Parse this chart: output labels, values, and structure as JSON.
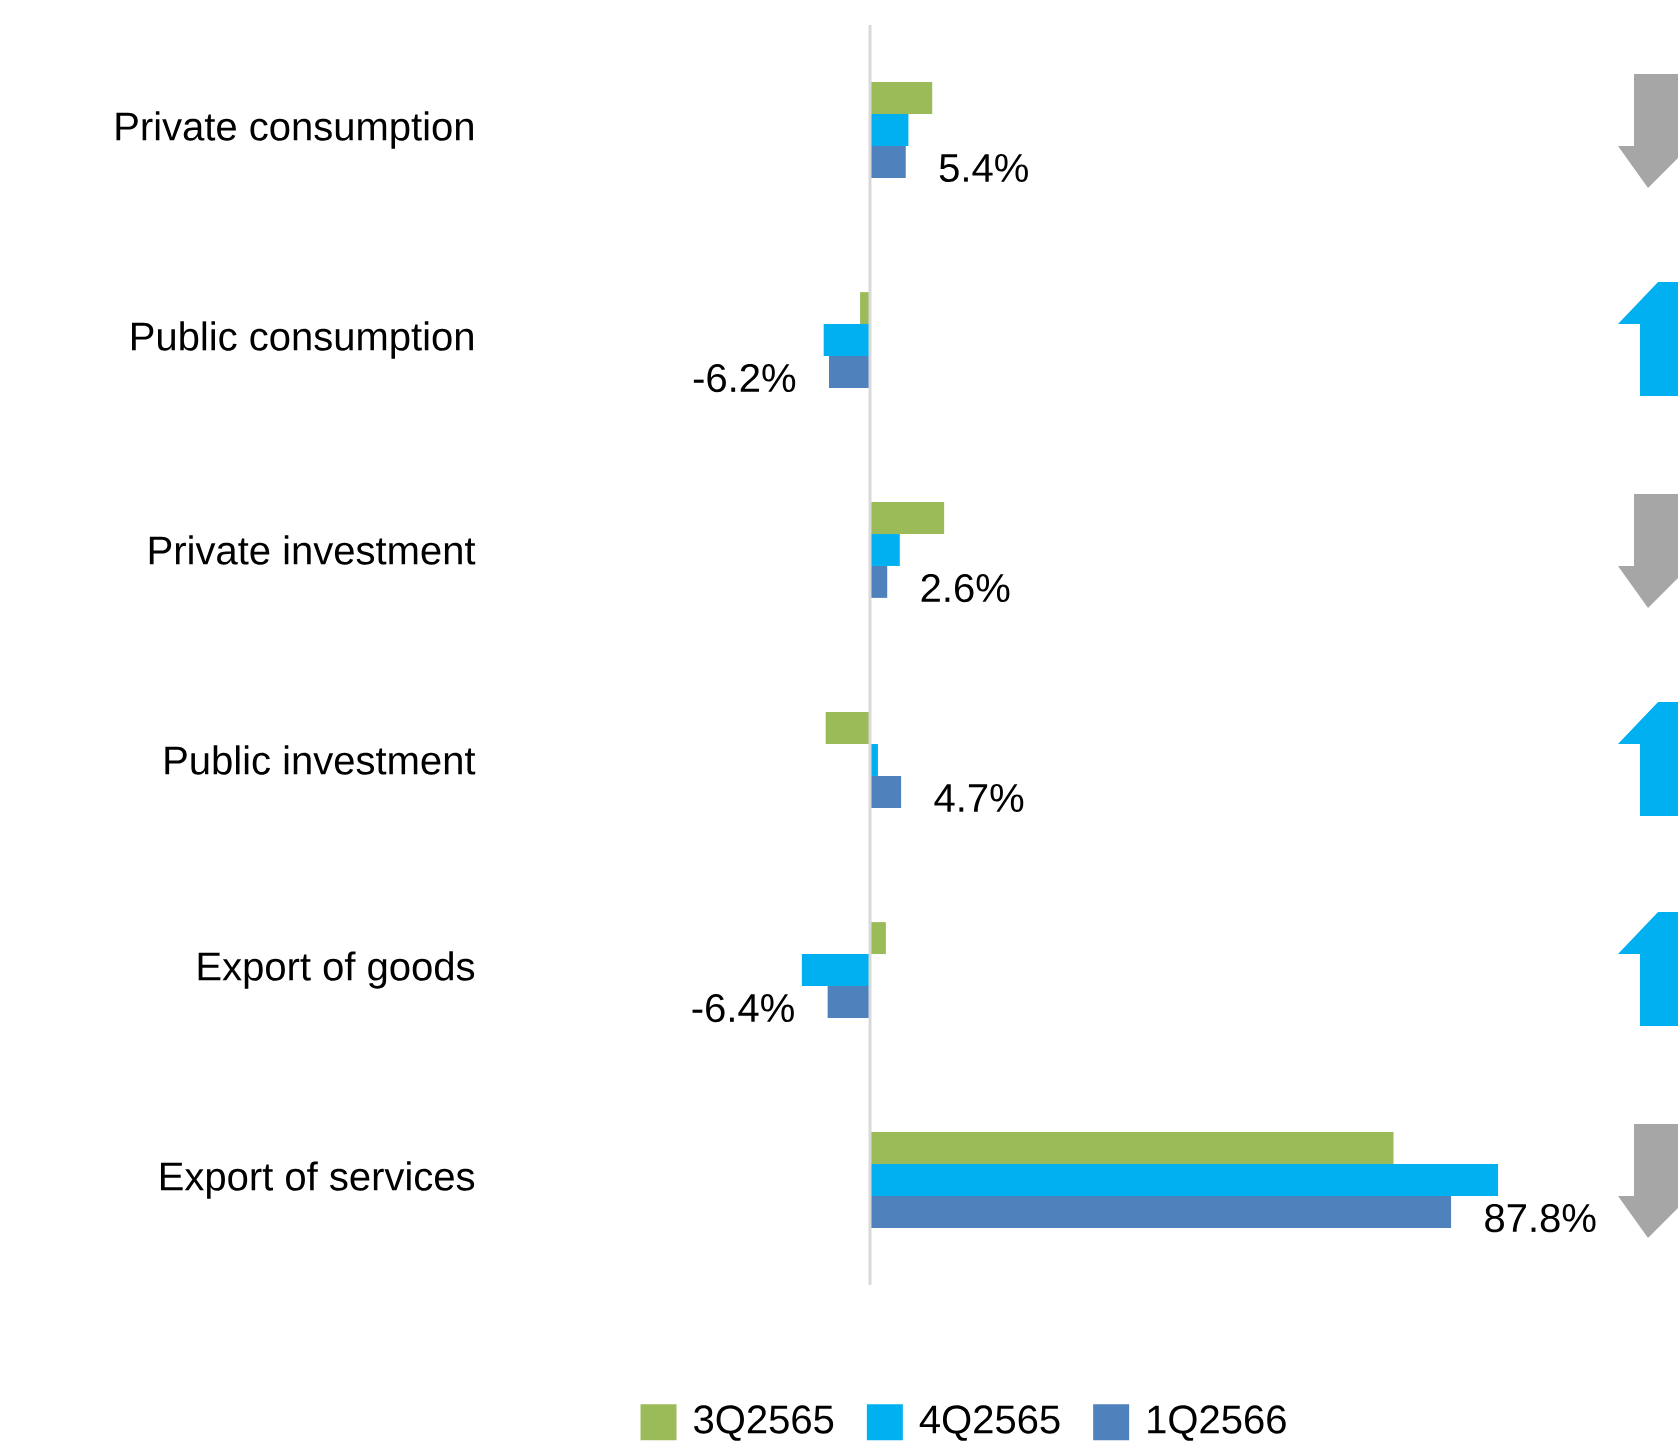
{
  "chart_data": {
    "type": "bar",
    "orientation": "horizontal",
    "categories": [
      "Private consumption",
      "Public consumption",
      "Private investment",
      "Public investment",
      "Export of goods",
      "Export of services"
    ],
    "series": [
      {
        "name": "3Q2565",
        "color": "#9bbb59",
        "values": [
          9.4,
          -1.5,
          11.2,
          -6.7,
          2.4,
          79.1
        ]
      },
      {
        "name": "4Q2565",
        "color": "#00b0f0",
        "values": [
          5.8,
          -7.0,
          4.5,
          1.2,
          -10.3,
          94.9
        ]
      },
      {
        "name": "1Q2566",
        "color": "#4f81bd",
        "values": [
          5.4,
          -6.2,
          2.6,
          4.7,
          -6.4,
          87.8
        ],
        "value_labels": [
          "5.4%",
          "-6.2%",
          "2.6%",
          "4.7%",
          "-6.4%",
          "87.8%"
        ]
      }
    ],
    "legend": "bottom",
    "tick_labels": "y"
  }
}
